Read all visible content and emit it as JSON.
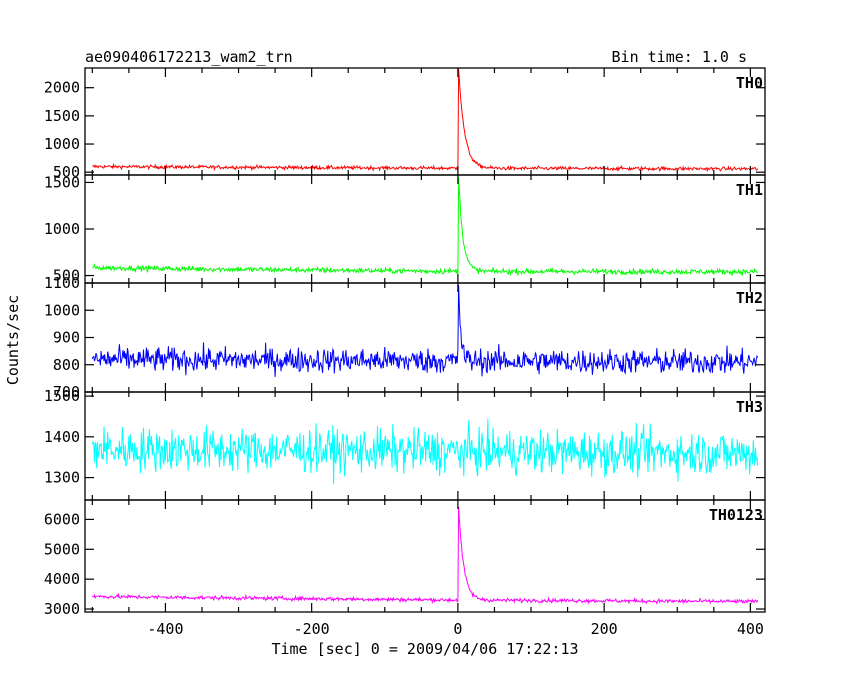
{
  "header": {
    "title": "ae090406172213_wam2_trn",
    "bin_time": "Bin time: 1.0 s"
  },
  "chart_data": {
    "type": "line",
    "xlabel": "Time [sec] 0 = 2009/04/06 17:22:13",
    "ylabel": "Counts/sec",
    "xlim": [
      -510,
      420
    ],
    "x_ticks": [
      -400,
      -200,
      0,
      200,
      400
    ],
    "x_range": [
      -500,
      410
    ],
    "bin_time": 1.0,
    "panels": [
      {
        "name": "TH0",
        "color": "#ff0000",
        "ylim": [
          450,
          2350
        ],
        "y_ticks": [
          500,
          1000,
          1500,
          2000
        ],
        "baseline": [
          [
            -500,
            600
          ],
          [
            -350,
            590
          ],
          [
            0,
            570
          ],
          [
            400,
            560
          ]
        ],
        "noise": 22,
        "peak": {
          "x": 1,
          "value": 2350,
          "decay": 8
        }
      },
      {
        "name": "TH1",
        "color": "#00ff00",
        "ylim": [
          420,
          1580
        ],
        "y_ticks": [
          500,
          1000,
          1500
        ],
        "baseline": [
          [
            -500,
            585
          ],
          [
            -350,
            570
          ],
          [
            0,
            545
          ],
          [
            400,
            540
          ]
        ],
        "noise": 20,
        "peak": {
          "x": 1,
          "value": 1550,
          "decay": 6
        }
      },
      {
        "name": "TH2",
        "color": "#0000ff",
        "ylim": [
          700,
          1100
        ],
        "y_ticks": [
          700,
          800,
          900,
          1000,
          1100
        ],
        "baseline": [
          [
            -500,
            820
          ],
          [
            400,
            810
          ]
        ],
        "noise": 32,
        "peak": {
          "x": 1,
          "value": 1100,
          "decay": 3
        }
      },
      {
        "name": "TH3",
        "color": "#00ffff",
        "ylim": [
          1245,
          1510
        ],
        "y_ticks": [
          1300,
          1400,
          1500
        ],
        "baseline": [
          [
            -500,
            1370
          ],
          [
            400,
            1360
          ]
        ],
        "noise": 38,
        "peak": null
      },
      {
        "name": "TH0123",
        "color": "#ff00ff",
        "ylim": [
          2900,
          6650
        ],
        "y_ticks": [
          3000,
          4000,
          5000,
          6000
        ],
        "baseline": [
          [
            -500,
            3420
          ],
          [
            -350,
            3380
          ],
          [
            0,
            3300
          ],
          [
            400,
            3250
          ]
        ],
        "noise": 45,
        "peak": {
          "x": 1,
          "value": 6400,
          "decay": 7
        }
      }
    ]
  }
}
